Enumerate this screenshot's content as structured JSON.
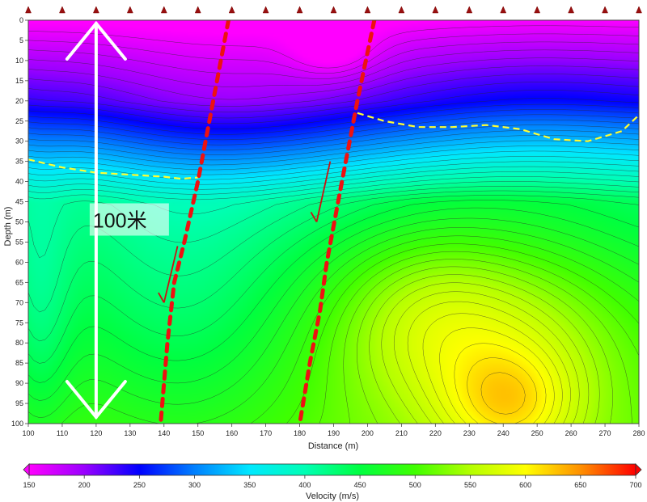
{
  "chart_data": {
    "type": "heatmap",
    "title": "",
    "xlabel": "Distance (m)",
    "ylabel": "Depth (m)",
    "xlim": [
      100,
      280
    ],
    "ylim": [
      0,
      100
    ],
    "y_inverted": true,
    "x_ticks": [
      100,
      110,
      120,
      130,
      140,
      150,
      160,
      170,
      180,
      190,
      200,
      210,
      220,
      230,
      240,
      250,
      260,
      270,
      280
    ],
    "y_ticks": [
      0,
      5,
      10,
      15,
      20,
      25,
      30,
      35,
      40,
      45,
      50,
      55,
      60,
      65,
      70,
      75,
      80,
      85,
      90,
      95,
      100
    ],
    "colorbar": {
      "label": "Velocity (m/s)",
      "min": 150,
      "max": 700,
      "ticks": [
        150,
        200,
        250,
        300,
        350,
        400,
        450,
        500,
        550,
        600,
        650,
        700
      ],
      "stops": [
        {
          "v": 150,
          "color": "#ff00ff"
        },
        {
          "v": 200,
          "color": "#9a00ff"
        },
        {
          "v": 250,
          "color": "#0000ff"
        },
        {
          "v": 300,
          "color": "#0080ff"
        },
        {
          "v": 350,
          "color": "#00e8ff"
        },
        {
          "v": 400,
          "color": "#00ffb4"
        },
        {
          "v": 450,
          "color": "#00ff40"
        },
        {
          "v": 500,
          "color": "#40ff00"
        },
        {
          "v": 550,
          "color": "#b4ff00"
        },
        {
          "v": 600,
          "color": "#ffff00"
        },
        {
          "v": 650,
          "color": "#ff9000"
        },
        {
          "v": 700,
          "color": "#ff0000"
        }
      ]
    },
    "geophone_stations": [
      100,
      110,
      120,
      130,
      140,
      150,
      160,
      170,
      180,
      190,
      200,
      210,
      220,
      230,
      240,
      250,
      260,
      270,
      280
    ],
    "interfaces": [
      {
        "points": [
          [
            100,
            34.5
          ],
          [
            110,
            36.5
          ],
          [
            120,
            37.8
          ],
          [
            130,
            38.3
          ],
          [
            140,
            38.8
          ],
          [
            145,
            39.3
          ],
          [
            150,
            39
          ]
        ]
      },
      {
        "points": [
          [
            197,
            23
          ],
          [
            205,
            25
          ],
          [
            215,
            26.5
          ],
          [
            225,
            26.5
          ],
          [
            235,
            26
          ],
          [
            245,
            27
          ],
          [
            255,
            29.5
          ],
          [
            265,
            30
          ],
          [
            275,
            27.5
          ],
          [
            280,
            23.5
          ]
        ]
      }
    ],
    "faults": [
      {
        "points": [
          [
            159,
            0
          ],
          [
            150,
            40
          ],
          [
            146,
            55
          ],
          [
            143,
            65
          ],
          [
            141,
            80
          ],
          [
            139,
            100
          ]
        ]
      },
      {
        "points": [
          [
            202,
            0
          ],
          [
            197,
            20
          ],
          [
            192,
            42
          ],
          [
            188,
            60
          ],
          [
            186,
            72
          ],
          [
            183,
            85
          ],
          [
            180,
            100
          ]
        ]
      }
    ],
    "slip_arrows": [
      {
        "from": [
          144,
          56
        ],
        "to": [
          140,
          70
        ]
      },
      {
        "from": [
          189,
          35
        ],
        "to": [
          185,
          50
        ]
      }
    ],
    "scale_annotation": {
      "text": "100米",
      "x": 120,
      "from_depth": 0,
      "to_depth": 100
    }
  }
}
